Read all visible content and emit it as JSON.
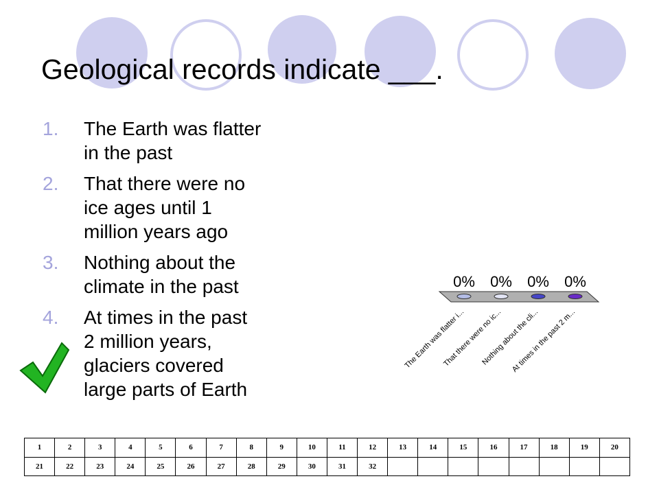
{
  "title": "Geological records indicate ___.",
  "options": [
    {
      "number": "1.",
      "lines": [
        "The Earth was flatter",
        "in the past"
      ]
    },
    {
      "number": "2.",
      "lines": [
        "That there were no",
        "ice ages until 1",
        "million years ago"
      ]
    },
    {
      "number": "3.",
      "lines": [
        "Nothing about the",
        "climate in the past"
      ]
    },
    {
      "number": "4.",
      "lines": [
        "At times in the past",
        "2 million years,",
        "glaciers covered",
        "large parts of Earth"
      ]
    }
  ],
  "chart_data": {
    "type": "bar",
    "categories": [
      "The Earth was flatter i...",
      "That there were no ic...",
      "Nothing about the cli...",
      "At times in the past 2 m..."
    ],
    "values": [
      0,
      0,
      0,
      0
    ],
    "value_labels": [
      "0%",
      "0%",
      "0%",
      "0%"
    ],
    "colors": [
      "#b4bde6",
      "#e2e4f4",
      "#4646c8",
      "#6a2cc8"
    ]
  },
  "table": {
    "rows": [
      [
        1,
        2,
        3,
        4,
        5,
        6,
        7,
        8,
        9,
        10,
        11,
        12,
        13,
        14,
        15,
        16,
        17,
        18,
        19,
        20
      ],
      [
        21,
        22,
        23,
        24,
        25,
        26,
        27,
        28,
        29,
        30,
        31,
        32
      ]
    ]
  }
}
